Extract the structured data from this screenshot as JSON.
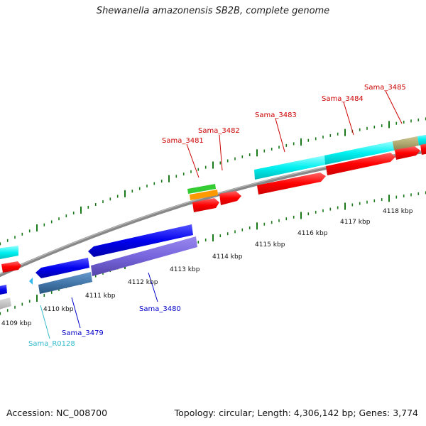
{
  "title": "Shewanella amazonensis SB2B, complete genome",
  "footer": {
    "accession": "Accession: NC_008700",
    "stats": "Topology: circular; Length: 4,306,142 bp; Genes: 3,774"
  },
  "ticks": [
    "4109 kbp",
    "4110 kbp",
    "4111 kbp",
    "4112 kbp",
    "4113 kbp",
    "4114 kbp",
    "4115 kbp",
    "4116 kbp",
    "4117 kbp",
    "4118 kbp"
  ],
  "gene_labels": [
    {
      "text": "Sama_3481",
      "color": "#cc0000"
    },
    {
      "text": "Sama_3482",
      "color": "#cc0000"
    },
    {
      "text": "Sama_3483",
      "color": "#cc0000"
    },
    {
      "text": "Sama_3484",
      "color": "#cc0000"
    },
    {
      "text": "Sama_3485",
      "color": "#cc0000"
    },
    {
      "text": "Sama_3479",
      "color": "#0000cc"
    },
    {
      "text": "Sama_3480",
      "color": "#0000cc"
    },
    {
      "text": "Sama_R0128",
      "color": "#33bbcc"
    }
  ],
  "colors": {
    "forward_cds": "#ff0000",
    "reverse_cds": "#0000ee",
    "forward_feature": "#00eeee",
    "reverse_feature": "#7766dd",
    "reverse_feature_alt": "#4477aa",
    "olive_feature": "#b0a870",
    "green_feature": "#33cc33",
    "orange_feature": "#ff9900",
    "rna": "#33bbee",
    "backbone": "#888888",
    "tick": "#1a7a1a"
  }
}
